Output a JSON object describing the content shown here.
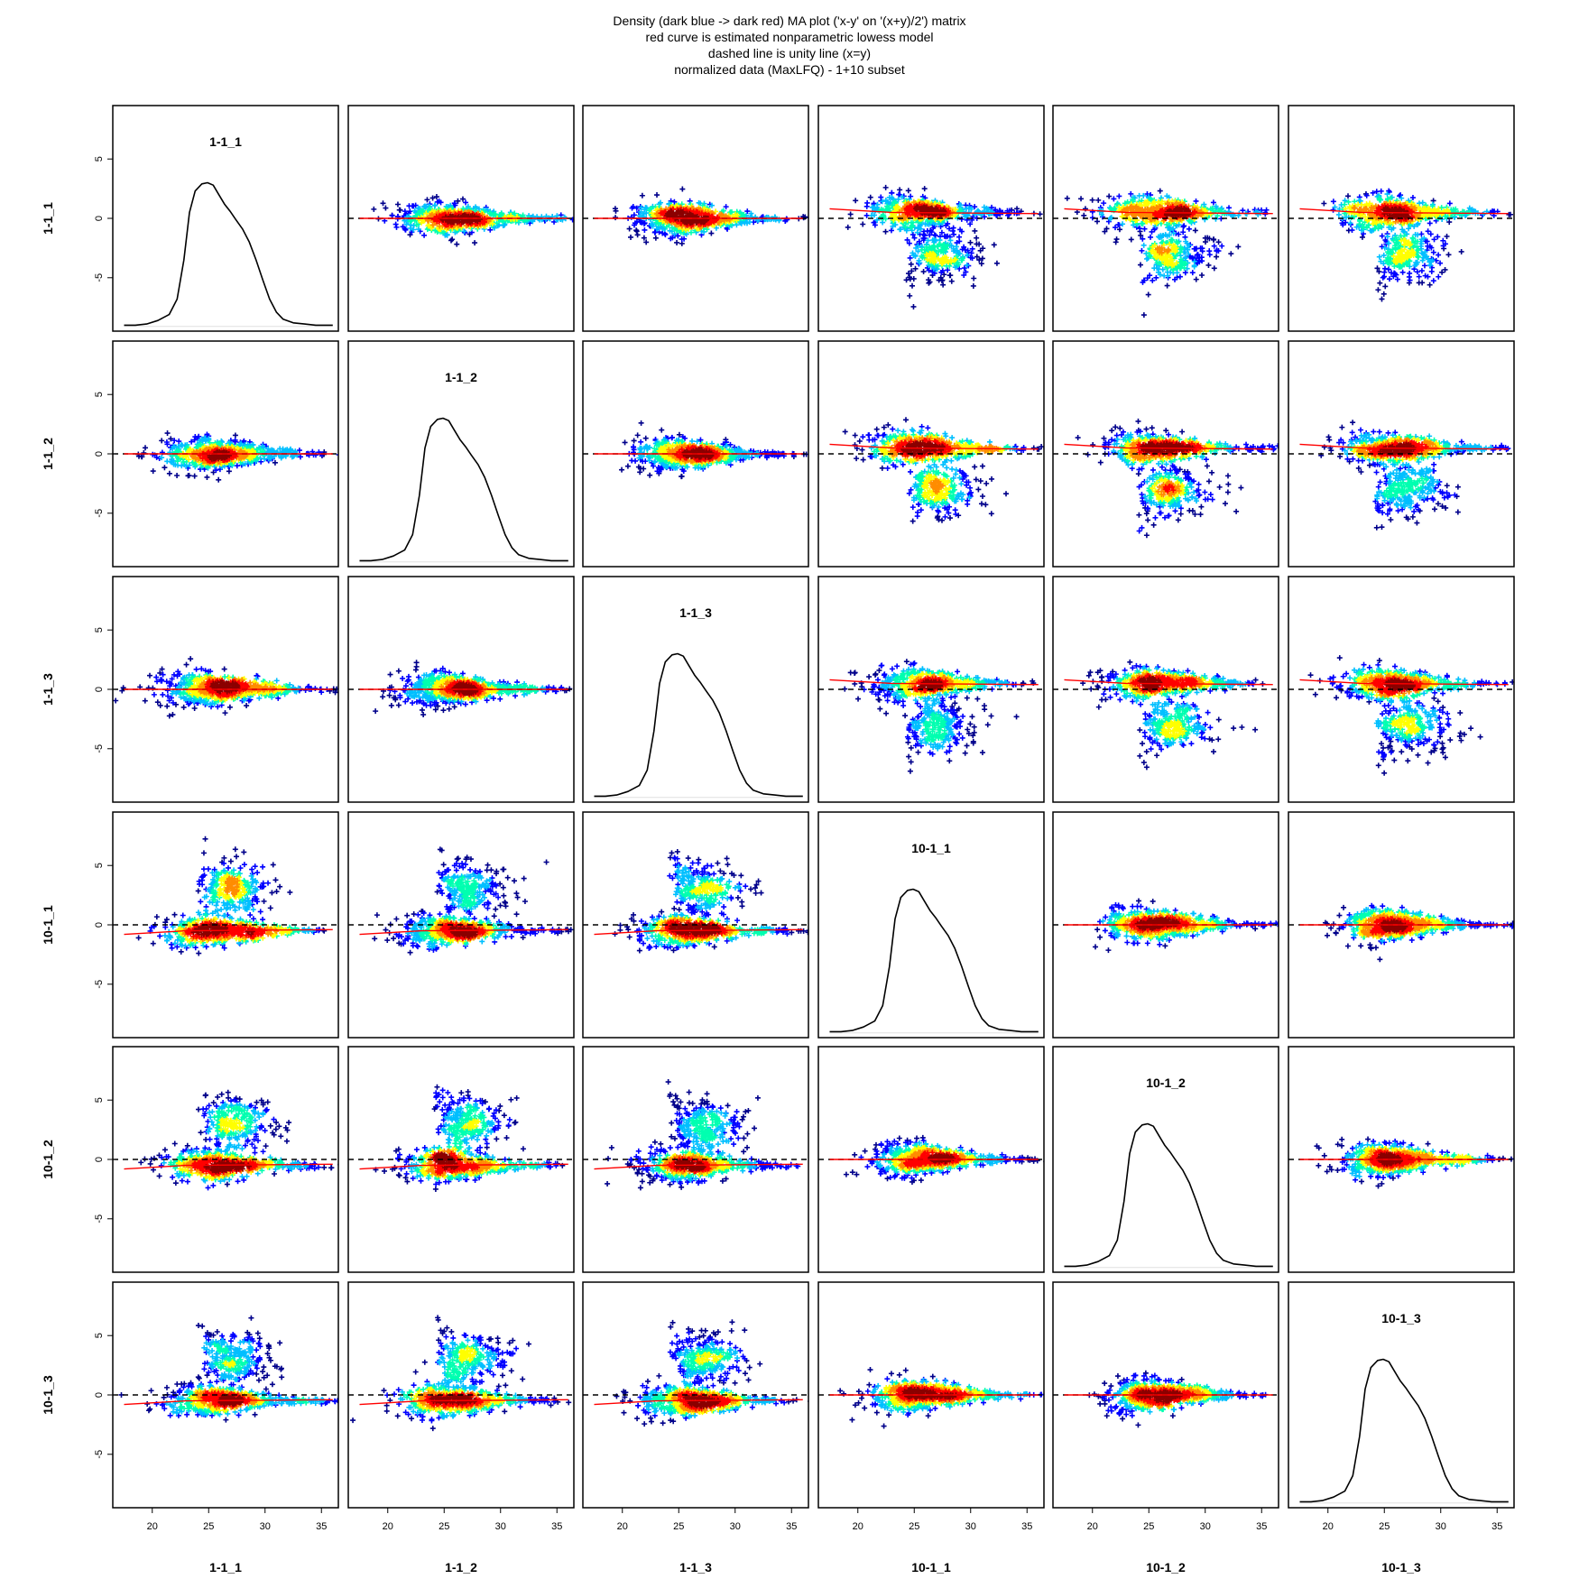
{
  "title_lines": [
    "Density (dark blue -> dark red) MA plot ('x-y' on '(x+y)/2') matrix",
    "red curve is estimated nonparametric lowess model",
    "dashed line is unity line (x=y)",
    "normalized data (MaxLFQ) - 1+10 subset"
  ],
  "chart_data": {
    "type": "scatter",
    "layout": "pairs-matrix",
    "samples": [
      "1-1_1",
      "1-1_2",
      "1-1_3",
      "10-1_1",
      "10-1_2",
      "10-1_3"
    ],
    "x_ticks": [
      20,
      25,
      30,
      35
    ],
    "y_ticks": [
      5,
      0,
      -5
    ],
    "xlim": [
      16.5,
      36.5
    ],
    "ylim": [
      -9.5,
      9.5
    ],
    "diagonal": "density",
    "off_diagonal": "MA scatter (x-y vs (x+y)/2), density colored",
    "density_colors": [
      "#00008b",
      "#0000ff",
      "#00bfff",
      "#00ffb0",
      "#ffff00",
      "#ff8c00",
      "#ff0000",
      "#8b0000"
    ],
    "density_curve": [
      [
        17.5,
        -9.0
      ],
      [
        18.5,
        -9.0
      ],
      [
        19.5,
        -8.9
      ],
      [
        20.5,
        -8.6
      ],
      [
        21.5,
        -8.1
      ],
      [
        22.2,
        -6.8
      ],
      [
        22.8,
        -3.5
      ],
      [
        23.3,
        0.5
      ],
      [
        23.8,
        2.3
      ],
      [
        24.4,
        2.9
      ],
      [
        24.9,
        3.0
      ],
      [
        25.4,
        2.8
      ],
      [
        25.9,
        2.0
      ],
      [
        26.4,
        1.2
      ],
      [
        26.9,
        0.6
      ],
      [
        27.4,
        -0.1
      ],
      [
        28.0,
        -0.9
      ],
      [
        28.6,
        -2.0
      ],
      [
        29.2,
        -3.5
      ],
      [
        29.8,
        -5.2
      ],
      [
        30.4,
        -6.8
      ],
      [
        31.0,
        -7.9
      ],
      [
        31.6,
        -8.5
      ],
      [
        32.5,
        -8.8
      ],
      [
        33.5,
        -8.9
      ],
      [
        34.5,
        -9.0
      ],
      [
        36.0,
        -9.0
      ]
    ],
    "groups": {
      "1-1": [
        "1-1_1",
        "1-1_2",
        "1-1_3"
      ],
      "10-1": [
        "10-1_1",
        "10-1_2",
        "10-1_3"
      ]
    },
    "within_group_lowess": [
      [
        17.5,
        0.0
      ],
      [
        36.0,
        0.0
      ]
    ],
    "cross_group_main_cloud_offset": 0.5,
    "cross_group_secondary_cloud": {
      "x_range": [
        23.5,
        31.5
      ],
      "y_center": 3.0
    },
    "unity_line_y": 0,
    "grid": false
  },
  "colors": {
    "lowess": "#ff0000",
    "unity_line": "#000000",
    "density_line": "#000000",
    "frame": "#000000"
  }
}
